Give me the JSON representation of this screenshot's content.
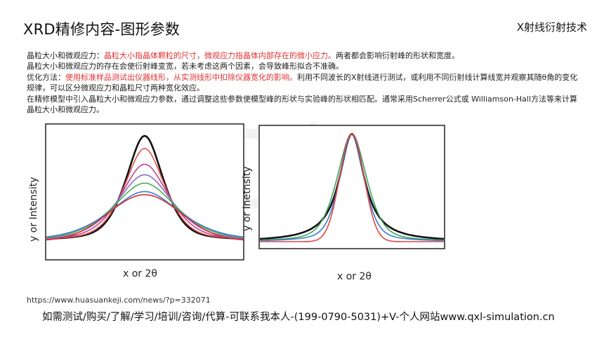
{
  "header": {
    "title": "XRD精修内容-图形参数",
    "brand": "X射线衍射技术"
  },
  "body": {
    "p1_label": "晶粒大小和微观应力：",
    "p1_red": "晶粒大小指晶体颗粒的尺寸，微观应力指晶体内部存在的微小应力。",
    "p1_tail": "两者都会影响衍射峰的形状和宽度。",
    "p2": "晶粒大小和微观应力的存在会使衍射峰变宽，若未考虑这两个因素，会导致峰形拟合不准确。",
    "p3_label": "优化方法：",
    "p3_red": "使用标准样品测试出仪器线形，从实测线形中扣除仪器宽化的影响。",
    "p3_tail": "利用不同波长的X射线进行测试，或利用不同衍射线计算线宽并观察其随θ角的变化规律，可以区分微观应力和晶粒尺寸两种宽化效应。",
    "p4": "在精修模型中引入晶粒大小和微观应力参数，通过调整这些参数使模型峰的形状与实验峰的形状相匹配。通常采用Scherrer公式或 Williamson-Hall方法等来计算晶粒大小和微观应力。"
  },
  "left_plot": {
    "ylabel": "y or Intensity",
    "xlabel": "x or 2θ"
  },
  "right_plot": {
    "ylabel": "y or Inetnsity",
    "xlabel": "x or 2θ"
  },
  "footer": {
    "url": "https://www.huasuankeji.com/news/?p=332071",
    "contact": "如需测试/购买/了解/学习/培训/咨询/代算-可联系我本人-(199-0790-5031)+V-个人网站www.qxl-simulation.cn"
  },
  "colors": {
    "red_text": "#e03030",
    "curves_left": [
      "#111111",
      "#e0524a",
      "#c0429a",
      "#8a70c0",
      "#4caf50",
      "#3a7bd5",
      "#d83030"
    ],
    "curves_right": [
      "#111111",
      "#3fa55a",
      "#3a7bd5",
      "#e04545"
    ]
  }
}
